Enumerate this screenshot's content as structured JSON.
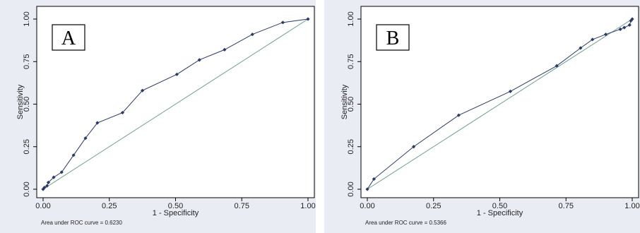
{
  "chart_data": [
    {
      "type": "line",
      "panel_label": "A",
      "xlabel": "1 - Specificity",
      "ylabel": "Sensitivity",
      "xlim": [
        0,
        1
      ],
      "ylim": [
        0,
        1
      ],
      "x_ticks": [
        "0.00",
        "0.25",
        "0.50",
        "0.75",
        "1.00"
      ],
      "y_ticks": [
        "0.00",
        "0.25",
        "0.50",
        "0.75",
        "1.00"
      ],
      "grid": false,
      "footnote": "Area under ROC curve = 0.6230",
      "series": [
        {
          "points": [
            [
              0,
              0
            ],
            [
              0.005,
              0.01
            ],
            [
              0.015,
              0.02
            ],
            [
              0.02,
              0.04
            ],
            [
              0.04,
              0.07
            ],
            [
              0.07,
              0.1
            ],
            [
              0.115,
              0.2
            ],
            [
              0.16,
              0.3
            ],
            [
              0.205,
              0.39
            ],
            [
              0.3,
              0.45
            ],
            [
              0.375,
              0.58
            ],
            [
              0.505,
              0.675
            ],
            [
              0.59,
              0.76
            ],
            [
              0.685,
              0.82
            ],
            [
              0.79,
              0.91
            ],
            [
              0.905,
              0.98
            ],
            [
              1.0,
              1.0
            ]
          ]
        }
      ],
      "reference_line": [
        [
          0,
          0
        ],
        [
          1,
          1
        ]
      ],
      "colors": {
        "curve": "#2b3a67",
        "reference": "#6f9e8b",
        "background": "#e9edf3"
      }
    },
    {
      "type": "line",
      "panel_label": "B",
      "xlabel": "1 - Specificity",
      "ylabel": "Sensitivity",
      "xlim": [
        0,
        1
      ],
      "ylim": [
        0,
        1
      ],
      "x_ticks": [
        "0.00",
        "0.25",
        "0.50",
        "0.75",
        "1.00"
      ],
      "y_ticks": [
        "0.00",
        "0.25",
        "0.50",
        "0.75",
        "1.00"
      ],
      "grid": false,
      "footnote": "Area under ROC curve = 0.5366",
      "series": [
        {
          "points": [
            [
              0,
              0
            ],
            [
              0.025,
              0.06
            ],
            [
              0.175,
              0.25
            ],
            [
              0.345,
              0.435
            ],
            [
              0.54,
              0.575
            ],
            [
              0.715,
              0.725
            ],
            [
              0.805,
              0.83
            ],
            [
              0.85,
              0.88
            ],
            [
              0.9,
              0.91
            ],
            [
              0.955,
              0.94
            ],
            [
              0.97,
              0.95
            ],
            [
              0.99,
              0.965
            ],
            [
              0.995,
              0.99
            ],
            [
              1.0,
              1.0
            ]
          ]
        }
      ],
      "reference_line": [
        [
          0,
          0
        ],
        [
          1,
          1
        ]
      ],
      "colors": {
        "curve": "#2b3a67",
        "reference": "#6f9e8b",
        "background": "#e9edf3"
      }
    }
  ]
}
